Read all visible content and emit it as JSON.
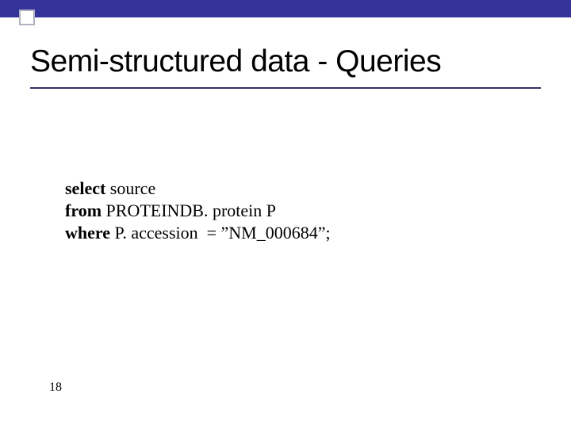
{
  "slide": {
    "title": "Semi-structured data - Queries",
    "page_number": "18",
    "accent_color": "#333399",
    "underline_color": "#333366",
    "background_color": "#ffffff",
    "text_color": "#000000"
  },
  "query": {
    "line1_keyword": "select",
    "line1_rest": " source",
    "line2_keyword": "from",
    "line2_rest": " PROTEINDB. protein P",
    "line3_keyword": "where",
    "line3_rest": " P. accession  = ”NM_000684”;"
  },
  "typography": {
    "title_fontsize": 39,
    "body_fontsize": 22,
    "pagenum_fontsize": 16,
    "title_font": "Arial",
    "body_font": "Times New Roman"
  }
}
